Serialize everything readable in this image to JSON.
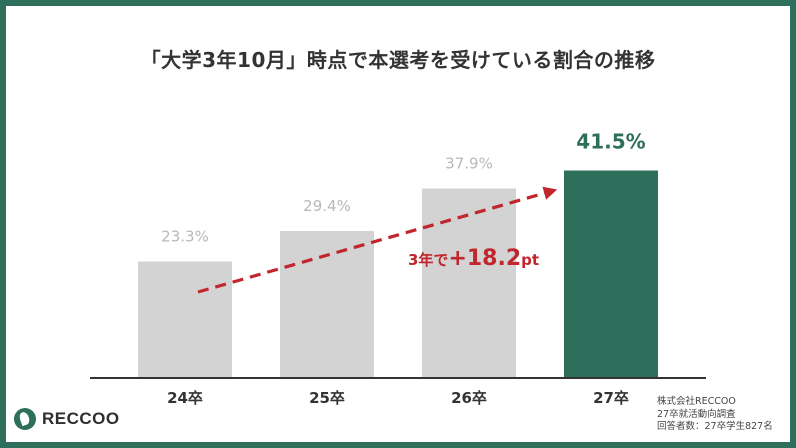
{
  "title": "「大学3年10月」時点で本選考を受けている割合の推移",
  "chart_data": {
    "type": "bar",
    "title": "「大学3年10月」時点で本選考を受けている割合の推移",
    "categories": [
      "24卒",
      "25卒",
      "26卒",
      "27卒"
    ],
    "values": [
      23.3,
      29.4,
      37.9,
      41.5
    ],
    "value_labels": [
      "23.3%",
      "29.4%",
      "37.9%",
      "41.5%"
    ],
    "unit": "%",
    "ylim": [
      0,
      50
    ],
    "highlight_index": 3,
    "colors": {
      "bar": "#d3d3d3",
      "highlight": "#2e6f5c",
      "arrow": "#c0262c",
      "label": "#b8b8b8"
    },
    "grid": false,
    "annotation": {
      "prefix": "3年で",
      "emphasis": "+18.2",
      "suffix": "pt"
    }
  },
  "brand": {
    "logo_text": "RECCOO",
    "logo_icon": "leaf-icon",
    "accent": "#2e6f5c"
  },
  "source": {
    "lines": [
      "株式会社RECCOO",
      "27卒就活動向調査",
      "回答者数：27卒学生827名"
    ]
  }
}
